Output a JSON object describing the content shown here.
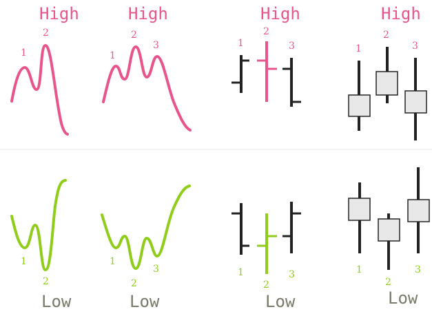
{
  "colors": {
    "high": "#e8558c",
    "low": "#8fcd1a",
    "bar": "#222222",
    "candle_fill": "#e8e8e8",
    "divider": "#e6e6e6",
    "low_text": "#7a7a6a"
  },
  "top_row": {
    "high_label": "High",
    "panels": [
      {
        "name": "double-top-line",
        "labels": [
          "1",
          "2"
        ]
      },
      {
        "name": "head-shoulders-line",
        "labels": [
          "1",
          "2",
          "3"
        ]
      },
      {
        "name": "top-bars",
        "labels": [
          "1",
          "2",
          "3"
        ]
      },
      {
        "name": "top-candles",
        "labels": [
          "1",
          "2",
          "3"
        ]
      }
    ]
  },
  "bottom_row": {
    "low_label": "Low",
    "panels": [
      {
        "name": "double-bottom-line",
        "labels": [
          "1",
          "2"
        ]
      },
      {
        "name": "inverse-head-shoulders-line",
        "labels": [
          "1",
          "2",
          "3"
        ]
      },
      {
        "name": "bottom-bars",
        "labels": [
          "1",
          "2",
          "3"
        ]
      },
      {
        "name": "bottom-candles",
        "labels": [
          "1",
          "2",
          "3"
        ]
      }
    ]
  }
}
